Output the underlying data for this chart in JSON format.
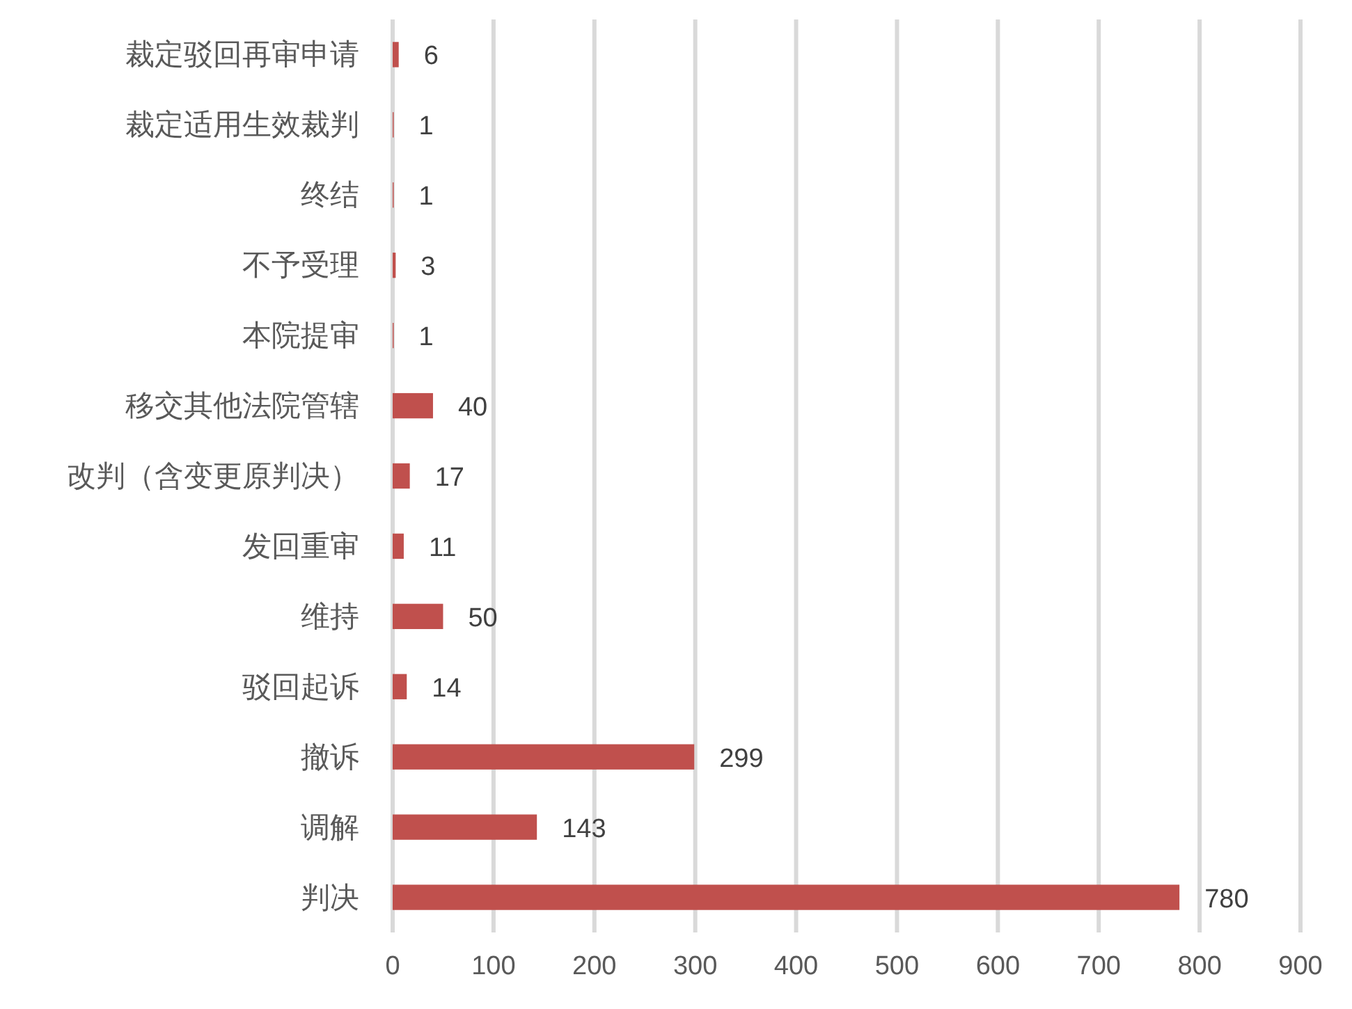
{
  "chart_data": {
    "type": "bar",
    "orientation": "horizontal",
    "categories": [
      "裁定驳回再审申请",
      "裁定适用生效裁判",
      "终结",
      "不予受理",
      "本院提审",
      "移交其他法院管辖",
      "改判（含变更原判决）",
      "发回重审",
      "维持",
      "驳回起诉",
      "撤诉",
      "调解",
      "判决"
    ],
    "values": [
      6,
      1,
      1,
      3,
      1,
      40,
      17,
      11,
      50,
      14,
      299,
      143,
      780
    ],
    "color": "#c0504d",
    "xlim": [
      0,
      900
    ],
    "xticks": [
      0,
      100,
      200,
      300,
      400,
      500,
      600,
      700,
      800,
      900
    ],
    "grid": "x",
    "data_labels": true
  }
}
